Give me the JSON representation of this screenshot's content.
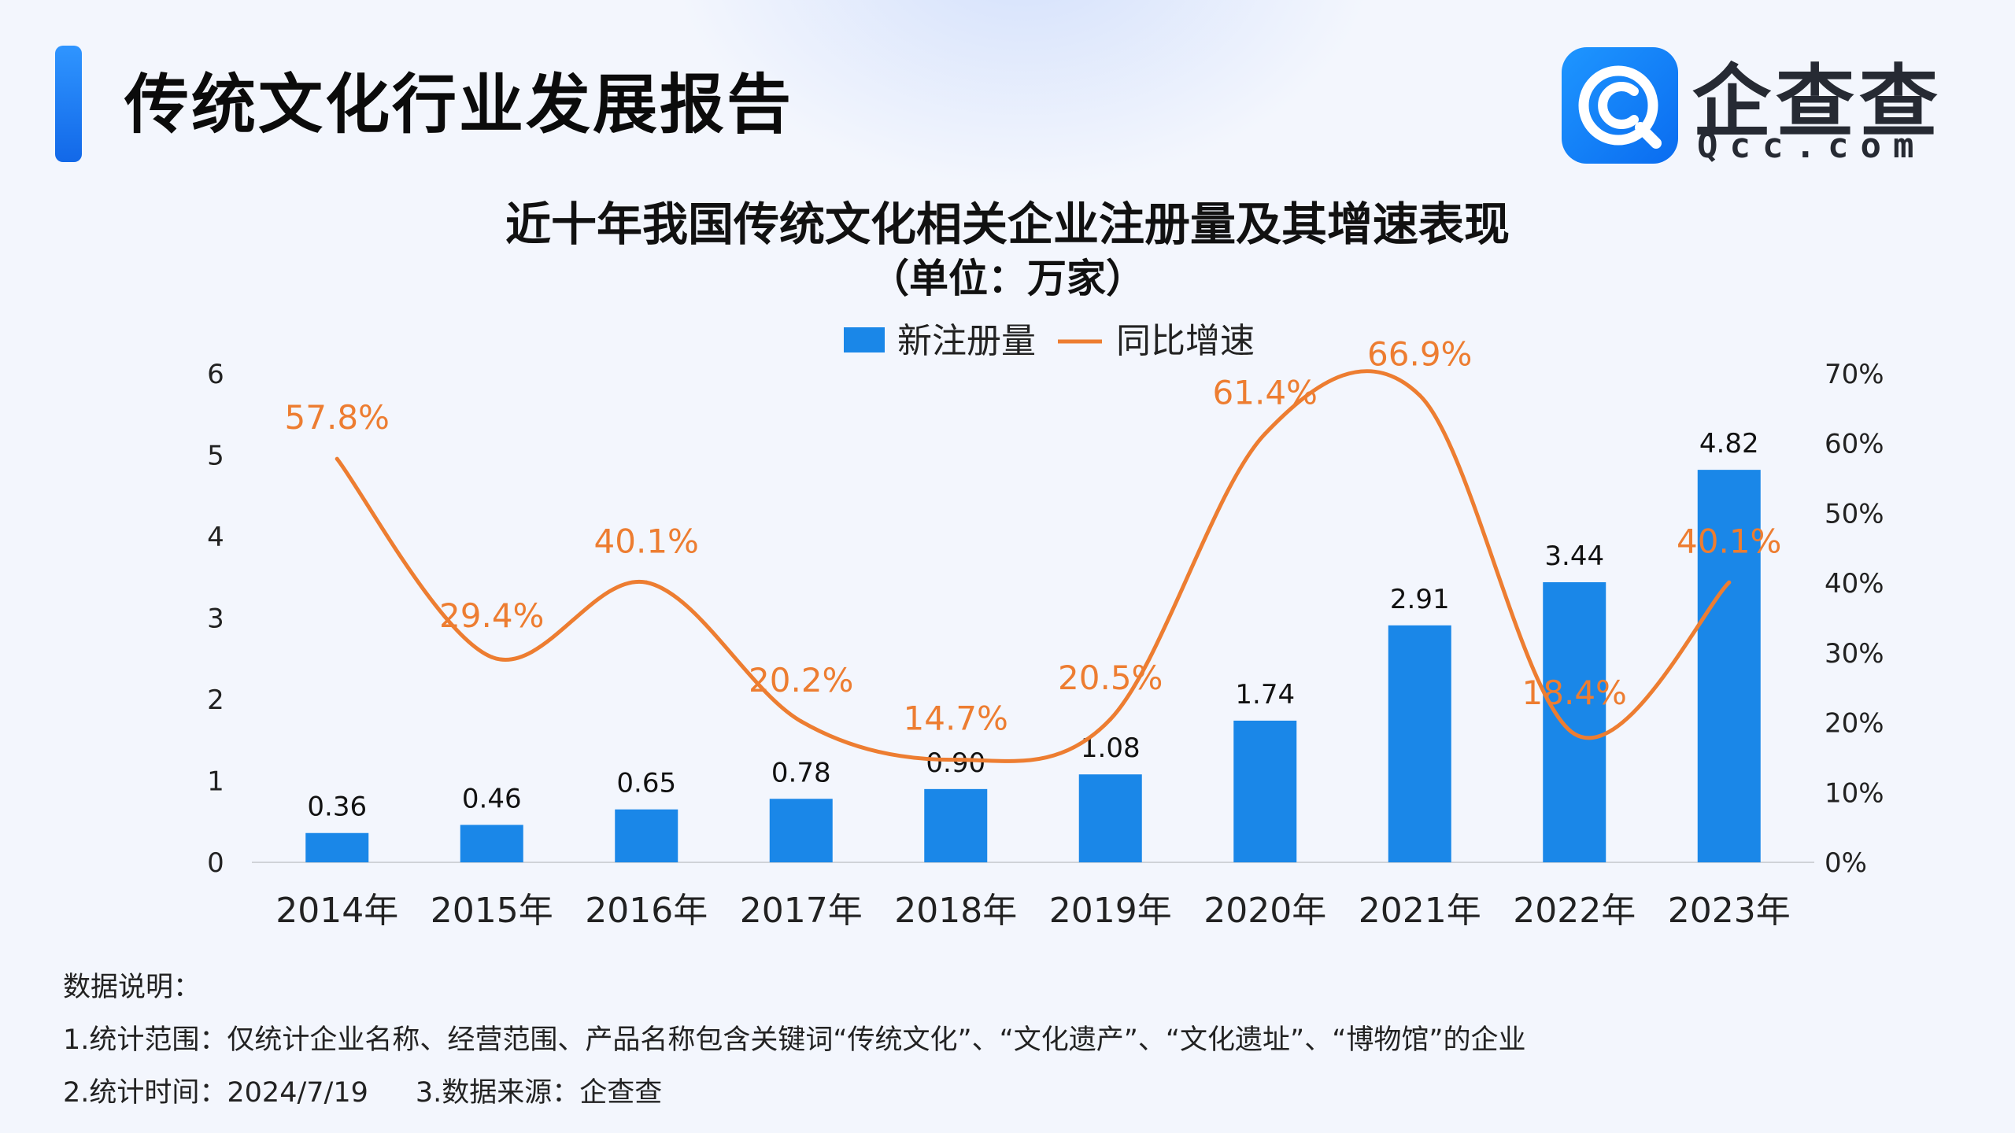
{
  "header": {
    "title": "传统文化行业发展报告",
    "logo_text": "企查查",
    "logo_sub": "Qcc.com"
  },
  "colors": {
    "accent": "#1a7fe6",
    "bar": "#1a87e8",
    "line": "#ed7d31"
  },
  "chart_data": {
    "type": "bar",
    "title": "近十年我国传统文化相关企业注册量及其增速表现",
    "subtitle": "（单位：万家）",
    "categories": [
      "2014年",
      "2015年",
      "2016年",
      "2017年",
      "2018年",
      "2019年",
      "2020年",
      "2021年",
      "2022年",
      "2023年"
    ],
    "series": [
      {
        "name": "新注册量",
        "type": "bar",
        "axis": "left",
        "values": [
          0.36,
          0.46,
          0.65,
          0.78,
          0.9,
          1.08,
          1.74,
          2.91,
          3.44,
          4.82
        ],
        "labels": [
          "0.36",
          "0.46",
          "0.65",
          "0.78",
          "0.90",
          "1.08",
          "1.74",
          "2.91",
          "3.44",
          "4.82"
        ]
      },
      {
        "name": "同比增速",
        "type": "line",
        "axis": "right",
        "values": [
          57.8,
          29.4,
          40.1,
          20.2,
          14.7,
          20.5,
          61.4,
          66.9,
          18.4,
          40.1
        ],
        "labels": [
          "57.8%",
          "29.4%",
          "40.1%",
          "20.2%",
          "14.7%",
          "20.5%",
          "61.4%",
          "66.9%",
          "18.4%",
          "40.1%"
        ]
      }
    ],
    "y_left": {
      "ylim": [
        0,
        6
      ],
      "ticks": [
        "0",
        "1",
        "2",
        "3",
        "4",
        "5",
        "6"
      ]
    },
    "y_right": {
      "ylim": [
        0,
        70
      ],
      "ticks": [
        "0%",
        "10%",
        "20%",
        "30%",
        "40%",
        "50%",
        "60%",
        "70%"
      ]
    },
    "legend_position": "top-center",
    "grid": false
  },
  "notes": {
    "heading": "数据说明：",
    "line1": "1.统计范围：仅统计企业名称、经营范围、产品名称包含关键词“传统文化”、“文化遗产”、“文化遗址”、“博物馆”的企业",
    "line2a": "2.统计时间：2024/7/19",
    "line2b": "3.数据来源：企查查"
  }
}
